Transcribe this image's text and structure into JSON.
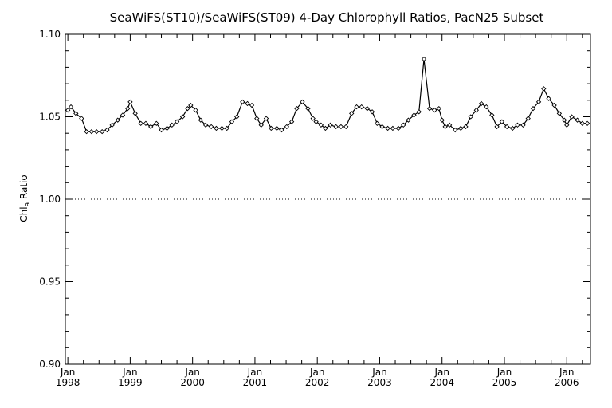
{
  "chart_data": {
    "type": "line",
    "title": "SeaWiFS(ST10)/SeaWiFS(ST09) 4-Day Chlorophyll Ratios, PacN25 Subset",
    "ylabel_main": "Chl",
    "ylabel_sub": "a",
    "ylabel_tail": " Ratio",
    "xlim": [
      1997.96,
      2006.38
    ],
    "ylim": [
      0.9,
      1.1
    ],
    "yticks": [
      {
        "value": 0.9,
        "label": "0.90"
      },
      {
        "value": 0.95,
        "label": "0.95"
      },
      {
        "value": 1.0,
        "label": "1.00"
      },
      {
        "value": 1.05,
        "label": "1.05"
      },
      {
        "value": 1.1,
        "label": "1.10"
      }
    ],
    "xticks": [
      {
        "value": 1998,
        "month": "Jan",
        "year": "1998"
      },
      {
        "value": 1999,
        "month": "Jan",
        "year": "1999"
      },
      {
        "value": 2000,
        "month": "Jan",
        "year": "2000"
      },
      {
        "value": 2001,
        "month": "Jan",
        "year": "2001"
      },
      {
        "value": 2002,
        "month": "Jan",
        "year": "2002"
      },
      {
        "value": 2003,
        "month": "Jan",
        "year": "2003"
      },
      {
        "value": 2004,
        "month": "Jan",
        "year": "2004"
      },
      {
        "value": 2005,
        "month": "Jan",
        "year": "2005"
      },
      {
        "value": 2006,
        "month": "Jan",
        "year": "2006"
      }
    ],
    "reference_line": 1.0,
    "grid": false,
    "series": [
      {
        "x": [
          1998.0,
          1998.05,
          1998.13,
          1998.22,
          1998.3,
          1998.38,
          1998.46,
          1998.55,
          1998.63,
          1998.71,
          1998.8,
          1998.88,
          1998.96,
          1999.0,
          1999.08,
          1999.17,
          1999.25,
          1999.33,
          1999.42,
          1999.5,
          1999.59,
          1999.67,
          1999.75,
          1999.84,
          1999.92,
          1999.97,
          2000.05,
          2000.13,
          2000.21,
          2000.3,
          2000.38,
          2000.47,
          2000.55,
          2000.63,
          2000.71,
          2000.8,
          2000.88,
          2000.95,
          2001.03,
          2001.1,
          2001.18,
          2001.26,
          2001.35,
          2001.43,
          2001.51,
          2001.59,
          2001.67,
          2001.76,
          2001.85,
          2001.93,
          2001.98,
          2002.06,
          2002.13,
          2002.21,
          2002.3,
          2002.38,
          2002.46,
          2002.55,
          2002.63,
          2002.71,
          2002.8,
          2002.88,
          2002.96,
          2003.04,
          2003.13,
          2003.21,
          2003.3,
          2003.38,
          2003.46,
          2003.55,
          2003.63,
          2003.71,
          2003.8,
          2003.88,
          2003.95,
          2004.0,
          2004.05,
          2004.12,
          2004.21,
          2004.3,
          2004.38,
          2004.46,
          2004.55,
          2004.63,
          2004.71,
          2004.8,
          2004.88,
          2004.96,
          2005.04,
          2005.13,
          2005.21,
          2005.3,
          2005.38,
          2005.46,
          2005.55,
          2005.63,
          2005.71,
          2005.8,
          2005.88,
          2005.96,
          2006.0,
          2006.08,
          2006.17,
          2006.25,
          2006.33
        ],
        "values": [
          1.054,
          1.056,
          1.052,
          1.049,
          1.041,
          1.041,
          1.041,
          1.041,
          1.042,
          1.045,
          1.048,
          1.051,
          1.055,
          1.059,
          1.052,
          1.046,
          1.046,
          1.044,
          1.046,
          1.042,
          1.043,
          1.045,
          1.047,
          1.05,
          1.055,
          1.057,
          1.054,
          1.048,
          1.045,
          1.044,
          1.043,
          1.043,
          1.043,
          1.047,
          1.05,
          1.059,
          1.058,
          1.057,
          1.049,
          1.045,
          1.049,
          1.043,
          1.043,
          1.042,
          1.044,
          1.047,
          1.055,
          1.059,
          1.055,
          1.049,
          1.047,
          1.045,
          1.043,
          1.045,
          1.044,
          1.044,
          1.044,
          1.052,
          1.056,
          1.056,
          1.055,
          1.053,
          1.046,
          1.044,
          1.043,
          1.043,
          1.043,
          1.045,
          1.048,
          1.051,
          1.053,
          1.085,
          1.055,
          1.054,
          1.055,
          1.048,
          1.044,
          1.045,
          1.042,
          1.043,
          1.044,
          1.05,
          1.054,
          1.058,
          1.056,
          1.051,
          1.044,
          1.047,
          1.044,
          1.043,
          1.045,
          1.045,
          1.049,
          1.055,
          1.059,
          1.067,
          1.061,
          1.057,
          1.052,
          1.048,
          1.045,
          1.05,
          1.048,
          1.046,
          1.046
        ]
      }
    ]
  }
}
